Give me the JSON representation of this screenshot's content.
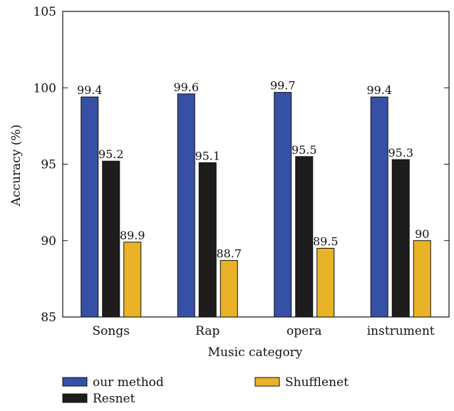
{
  "chart_data": {
    "type": "bar",
    "xlabel": "Music category",
    "ylabel": "Accuracy (%)",
    "ylim": [
      85,
      105
    ],
    "yticks": [
      "85",
      "90",
      "95",
      "100",
      "105"
    ],
    "categories": [
      "Songs",
      "Rap",
      "opera",
      "instrument"
    ],
    "series": [
      {
        "name": "our method",
        "color": "#3550a5",
        "values": [
          99.4,
          99.6,
          99.7,
          99.4
        ],
        "labels": [
          "99.4",
          "99.6",
          "99.7",
          "99.4"
        ]
      },
      {
        "name": "Resnet",
        "color": "#1e1c1c",
        "values": [
          95.2,
          95.1,
          95.5,
          95.3
        ],
        "labels": [
          "95.2",
          "95.1",
          "95.5",
          "95.3"
        ]
      },
      {
        "name": "Shufflenet",
        "color": "#eab226",
        "values": [
          89.9,
          88.7,
          89.5,
          90
        ],
        "labels": [
          "89.9",
          "88.7",
          "89.5",
          "90"
        ]
      }
    ],
    "grid": false,
    "legend_position": "bottom"
  }
}
